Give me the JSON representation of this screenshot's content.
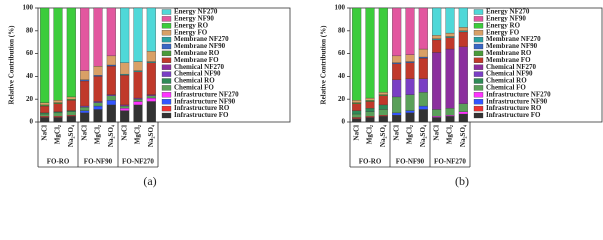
{
  "chart_data": [
    {
      "type": "bar",
      "stacked": true,
      "caption": "(a)",
      "ylabel": "Relative Contribution (%)",
      "categories": [
        "NaCl",
        "MgCl₂",
        "Na₂SO₄",
        "NaCl",
        "MgCl₂",
        "Na₂SO₄",
        "NaCl",
        "MgCl₂",
        "Na₂SO₄"
      ],
      "groups": [
        "FO-RO",
        "FO-NF90",
        "FO-NF270"
      ],
      "ylim": [
        0,
        100
      ],
      "yticks": [
        0,
        20,
        40,
        60,
        80,
        100
      ],
      "series": [
        {
          "name": "Energy NF270",
          "color": "#4fd8d8",
          "values": [
            0,
            0,
            0,
            0,
            0,
            0,
            48,
            47,
            38
          ]
        },
        {
          "name": "Energy NF90",
          "color": "#e2579f",
          "values": [
            0,
            0,
            0,
            55,
            51,
            42,
            0,
            0,
            0
          ]
        },
        {
          "name": "Energy RO",
          "color": "#3ccc3c",
          "values": [
            83,
            81,
            78,
            0,
            0,
            0,
            0,
            0,
            0
          ]
        },
        {
          "name": "Energy FO",
          "color": "#d9a066",
          "values": [
            2,
            2,
            2,
            8,
            8,
            8,
            10,
            8,
            9
          ]
        },
        {
          "name": "Membrane NF270",
          "color": "#2aa3a3",
          "values": [
            0,
            0,
            0,
            0,
            0,
            0,
            1,
            1,
            1
          ]
        },
        {
          "name": "Membrane NF90",
          "color": "#3a66c4",
          "values": [
            0,
            0,
            0,
            1,
            1,
            1,
            0,
            0,
            0
          ]
        },
        {
          "name": "Membrane RO",
          "color": "#4a9a3a",
          "values": [
            1,
            1,
            1,
            0,
            0,
            0,
            0,
            0,
            0
          ]
        },
        {
          "name": "Membrane FO",
          "color": "#c0392b",
          "values": [
            6,
            7,
            9,
            22,
            22,
            25,
            26,
            23,
            28
          ]
        },
        {
          "name": "Chemical NF270",
          "color": "#8b2f9e",
          "values": [
            0,
            0,
            0,
            0,
            0,
            0,
            1,
            1,
            1
          ]
        },
        {
          "name": "Chemical NF90",
          "color": "#7a3fc4",
          "values": [
            0,
            0,
            0,
            1,
            1,
            1,
            0,
            0,
            0
          ]
        },
        {
          "name": "Chemical RO",
          "color": "#2e8b57",
          "values": [
            1,
            1,
            1,
            0,
            0,
            0,
            0,
            0,
            0
          ]
        },
        {
          "name": "Chemical FO",
          "color": "#5aa05a",
          "values": [
            2,
            3,
            3,
            3,
            3,
            4,
            2,
            2,
            2
          ]
        },
        {
          "name": "Infrastructure NF270",
          "color": "#ff33ff",
          "values": [
            0,
            0,
            0,
            0,
            0,
            0,
            2,
            3,
            3
          ]
        },
        {
          "name": "Infrastructure NF90",
          "color": "#3355ff",
          "values": [
            0,
            0,
            0,
            2,
            3,
            4,
            0,
            0,
            0
          ]
        },
        {
          "name": "Infrastructure RO",
          "color": "#ee3333",
          "values": [
            1,
            1,
            1,
            0,
            0,
            0,
            0,
            0,
            0
          ]
        },
        {
          "name": "Infrastructure FO",
          "color": "#333333",
          "values": [
            4,
            4,
            5,
            8,
            11,
            15,
            10,
            15,
            18
          ]
        }
      ]
    },
    {
      "type": "bar",
      "stacked": true,
      "caption": "(b)",
      "ylabel": "Relative Contribution (%)",
      "categories": [
        "NaCl",
        "MgCl₂",
        "Na₂SO₄",
        "NaCl",
        "MgCl₂",
        "Na₂SO₄",
        "NaCl",
        "MgCl₂",
        "Na₂SO₄"
      ],
      "groups": [
        "FO-RO",
        "FO-NF90",
        "FO-NF270"
      ],
      "ylim": [
        0,
        100
      ],
      "yticks": [
        0,
        20,
        40,
        60,
        80,
        100
      ],
      "series": [
        {
          "name": "Energy NF270",
          "color": "#4fd8d8",
          "values": [
            0,
            0,
            0,
            0,
            0,
            0,
            24,
            22,
            17
          ]
        },
        {
          "name": "Energy NF90",
          "color": "#e2579f",
          "values": [
            0,
            0,
            0,
            42,
            41,
            36,
            0,
            0,
            0
          ]
        },
        {
          "name": "Energy RO",
          "color": "#3ccc3c",
          "values": [
            81,
            79,
            74,
            0,
            0,
            0,
            0,
            0,
            0
          ]
        },
        {
          "name": "Energy FO",
          "color": "#d9a066",
          "values": [
            2,
            2,
            2,
            6,
            6,
            7,
            3,
            3,
            3
          ]
        },
        {
          "name": "Membrane NF270",
          "color": "#2aa3a3",
          "values": [
            0,
            0,
            0,
            0,
            0,
            0,
            1,
            1,
            1
          ]
        },
        {
          "name": "Membrane NF90",
          "color": "#3a66c4",
          "values": [
            0,
            0,
            0,
            1,
            1,
            1,
            0,
            0,
            0
          ]
        },
        {
          "name": "Membrane RO",
          "color": "#4a9a3a",
          "values": [
            1,
            1,
            1,
            0,
            0,
            0,
            0,
            0,
            0
          ]
        },
        {
          "name": "Membrane FO",
          "color": "#c0392b",
          "values": [
            6,
            6,
            8,
            14,
            14,
            18,
            11,
            10,
            13
          ]
        },
        {
          "name": "Chemical NF270",
          "color": "#8b2f9e",
          "values": [
            0,
            0,
            0,
            0,
            0,
            0,
            50,
            52,
            50
          ]
        },
        {
          "name": "Chemical NF90",
          "color": "#7a3fc4",
          "values": [
            0,
            0,
            0,
            15,
            14,
            12,
            0,
            0,
            0
          ]
        },
        {
          "name": "Chemical RO",
          "color": "#2e8b57",
          "values": [
            3,
            3,
            4,
            0,
            0,
            0,
            0,
            0,
            0
          ]
        },
        {
          "name": "Chemical FO",
          "color": "#5aa05a",
          "values": [
            3,
            4,
            5,
            14,
            14,
            12,
            6,
            6,
            7
          ]
        },
        {
          "name": "Infrastructure NF270",
          "color": "#ff33ff",
          "values": [
            0,
            0,
            0,
            0,
            0,
            0,
            1,
            1,
            2
          ]
        },
        {
          "name": "Infrastructure NF90",
          "color": "#3355ff",
          "values": [
            0,
            0,
            0,
            2,
            2,
            3,
            0,
            0,
            0
          ]
        },
        {
          "name": "Infrastructure RO",
          "color": "#ee3333",
          "values": [
            1,
            1,
            1,
            0,
            0,
            0,
            0,
            0,
            0
          ]
        },
        {
          "name": "Infrastructure FO",
          "color": "#333333",
          "values": [
            3,
            4,
            5,
            6,
            8,
            11,
            4,
            5,
            7
          ]
        }
      ]
    }
  ]
}
